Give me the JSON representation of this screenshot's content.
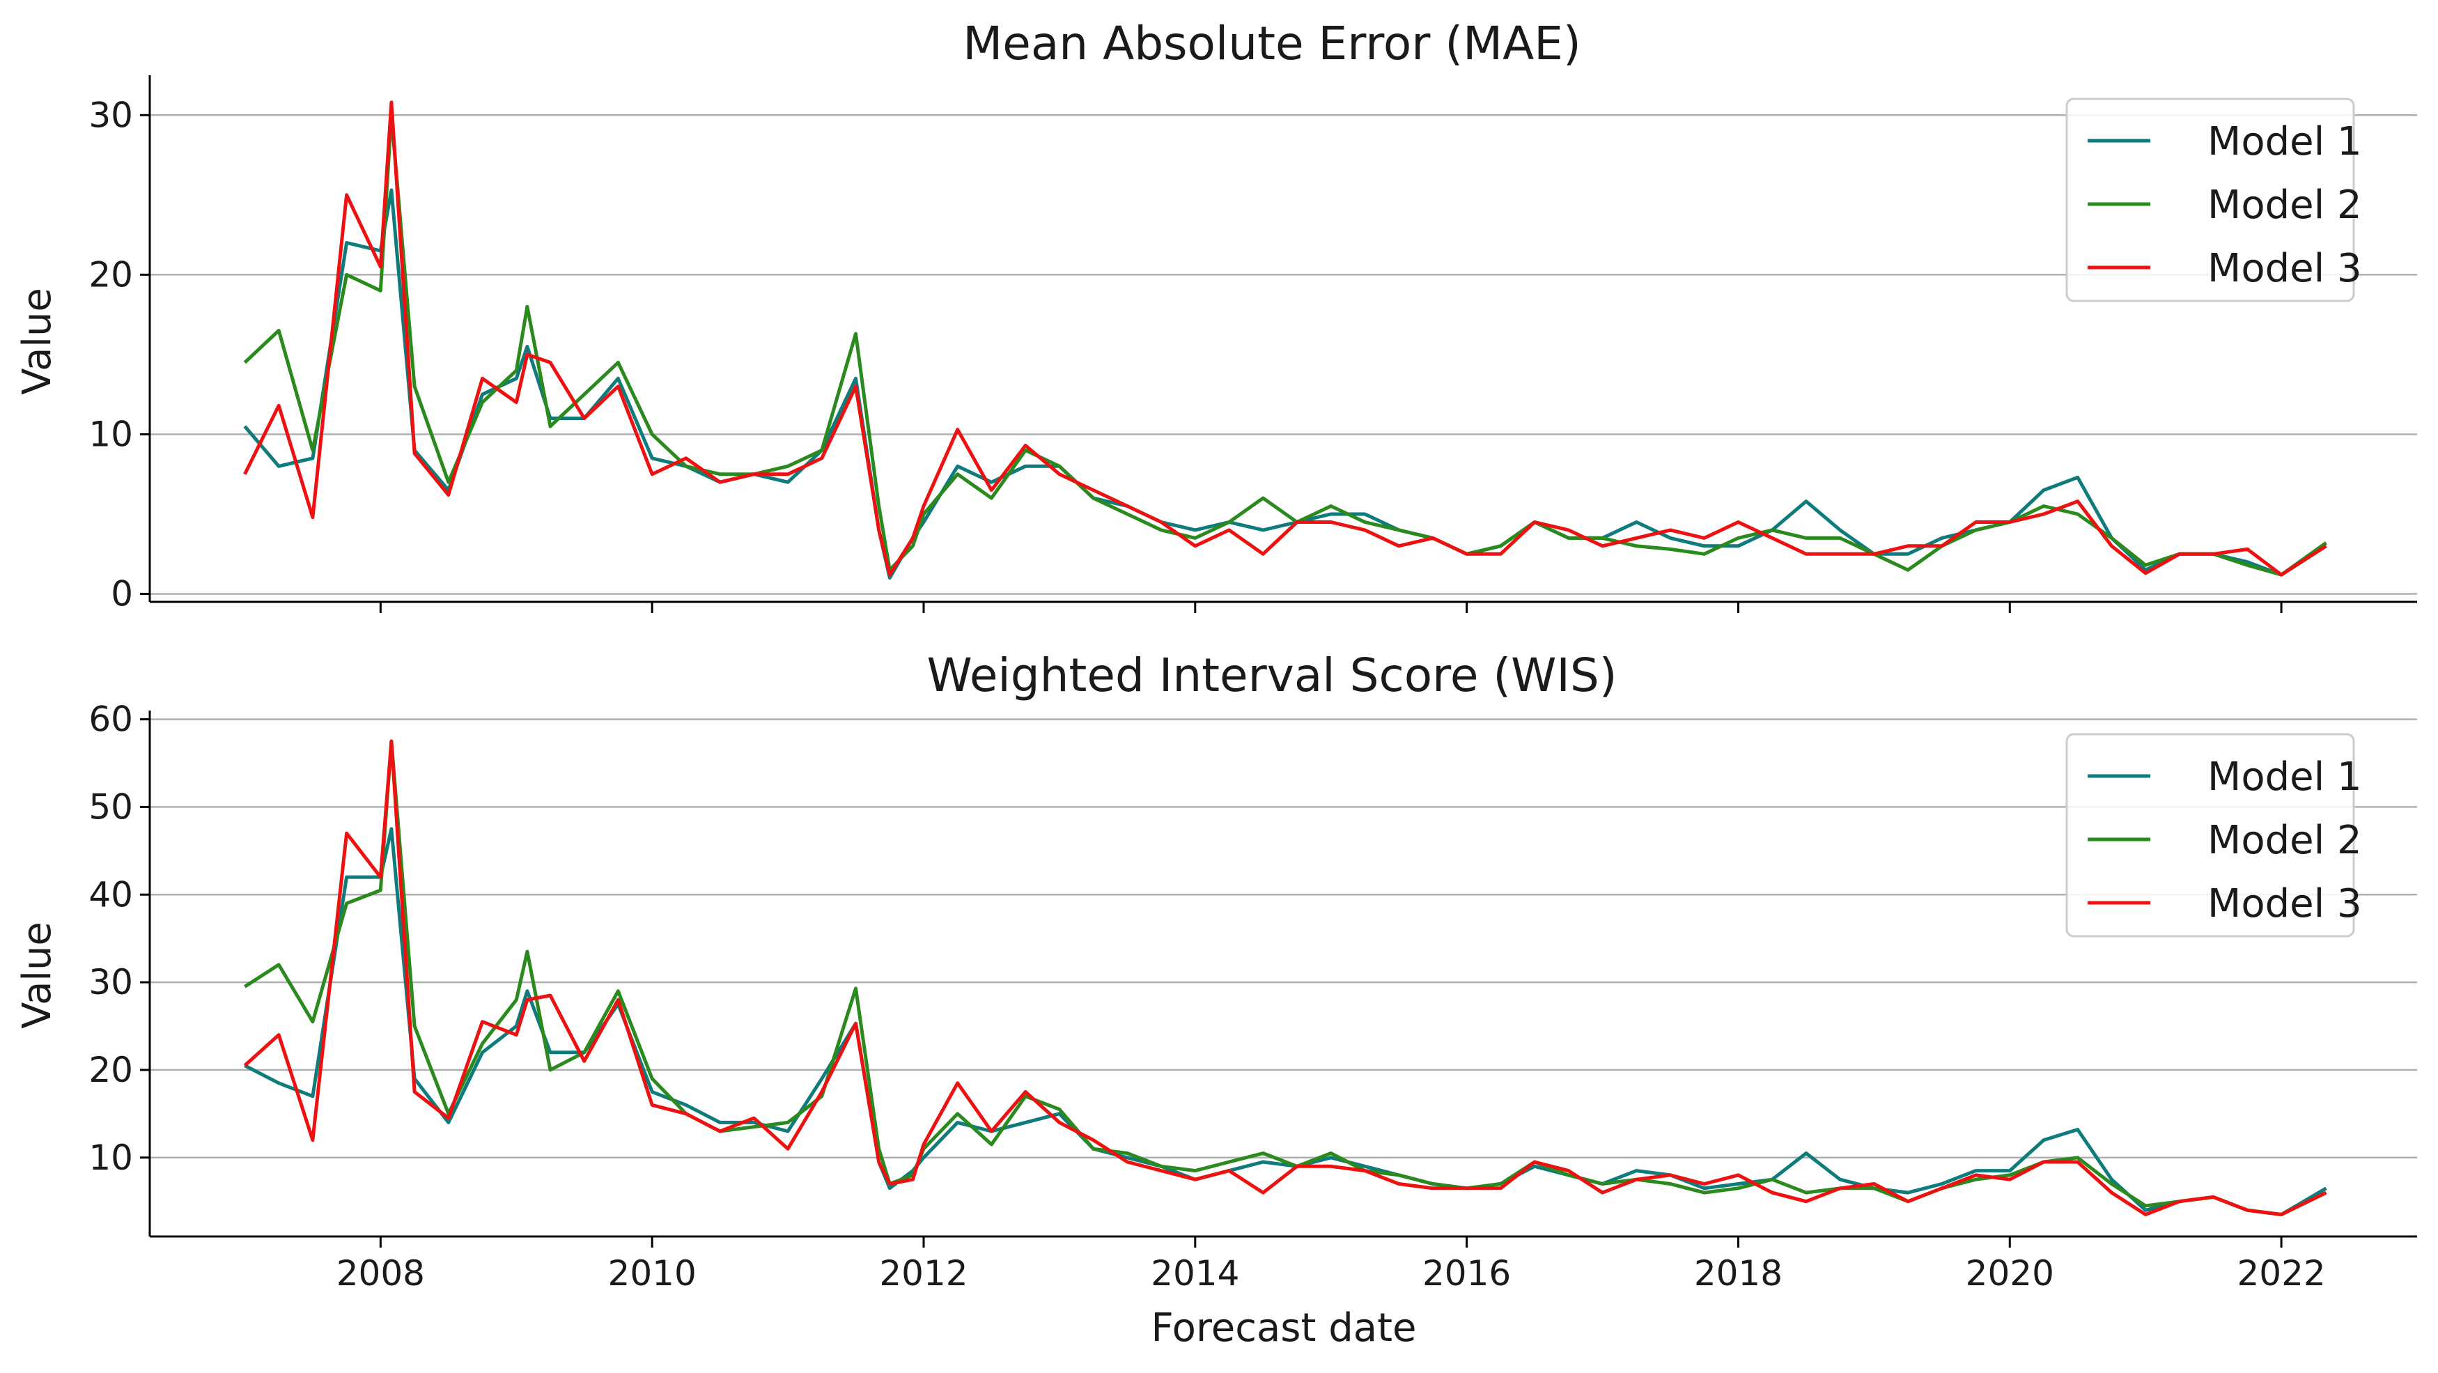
{
  "xlabel": "Forecast date",
  "x_ticks": [
    "2008",
    "2010",
    "2012",
    "2014",
    "2016",
    "2018",
    "2020",
    "2022"
  ],
  "colors": {
    "Model 1": "#0f7b7b",
    "Model 2": "#2a8a1e",
    "Model 3": "#ee1111"
  },
  "chart_data": [
    {
      "type": "line",
      "title": "Mean Absolute Error (MAE)",
      "xlabel": "",
      "ylabel": "Value",
      "xlim": [
        2006.3,
        2023.0
      ],
      "ylim": [
        -0.5,
        32.5
      ],
      "yticks": [
        0,
        10,
        20,
        30
      ],
      "grid": "horizontal",
      "legend": "top-right",
      "x": [
        2007.0,
        2007.25,
        2007.5,
        2007.75,
        2008.0,
        2008.08,
        2008.25,
        2008.5,
        2008.75,
        2009.0,
        2009.08,
        2009.25,
        2009.5,
        2009.75,
        2010.0,
        2010.25,
        2010.5,
        2010.75,
        2011.0,
        2011.25,
        2011.5,
        2011.67,
        2011.75,
        2011.92,
        2012.0,
        2012.25,
        2012.5,
        2012.75,
        2013.0,
        2013.25,
        2013.5,
        2013.75,
        2014.0,
        2014.25,
        2014.5,
        2014.75,
        2015.0,
        2015.25,
        2015.5,
        2015.75,
        2016.0,
        2016.25,
        2016.5,
        2016.75,
        2017.0,
        2017.25,
        2017.5,
        2017.75,
        2018.0,
        2018.25,
        2018.5,
        2018.75,
        2019.0,
        2019.25,
        2019.5,
        2019.75,
        2020.0,
        2020.25,
        2020.5,
        2020.75,
        2021.0,
        2021.25,
        2021.5,
        2021.75,
        2022.0,
        2022.33
      ],
      "series": [
        {
          "name": "Model 1",
          "values": [
            10.5,
            8.0,
            8.5,
            22.0,
            21.5,
            25.3,
            9.0,
            6.5,
            12.5,
            13.5,
            15.5,
            11.0,
            11.0,
            13.5,
            8.5,
            8.0,
            7.0,
            7.5,
            7.0,
            9.0,
            13.5,
            4.0,
            1.0,
            3.5,
            4.5,
            8.0,
            7.0,
            8.0,
            8.0,
            6.0,
            5.5,
            4.5,
            4.0,
            4.5,
            4.0,
            4.5,
            5.0,
            5.0,
            4.0,
            3.5,
            2.5,
            3.0,
            4.5,
            3.5,
            3.5,
            4.5,
            3.5,
            3.0,
            3.0,
            4.0,
            5.8,
            4.0,
            2.5,
            2.5,
            3.5,
            4.0,
            4.5,
            6.5,
            7.3,
            3.5,
            1.5,
            2.5,
            2.5,
            2.0,
            1.2,
            3.0
          ]
        },
        {
          "name": "Model 2",
          "values": [
            14.5,
            16.5,
            9.0,
            20.0,
            19.0,
            30.0,
            13.0,
            7.0,
            12.0,
            14.0,
            18.0,
            10.5,
            12.5,
            14.5,
            10.0,
            8.0,
            7.5,
            7.5,
            8.0,
            9.0,
            16.3,
            5.5,
            1.5,
            3.0,
            5.0,
            7.5,
            6.0,
            9.0,
            8.0,
            6.0,
            5.0,
            4.0,
            3.5,
            4.5,
            6.0,
            4.5,
            5.5,
            4.5,
            4.0,
            3.5,
            2.5,
            3.0,
            4.5,
            3.5,
            3.5,
            3.0,
            2.8,
            2.5,
            3.5,
            4.0,
            3.5,
            3.5,
            2.5,
            1.5,
            3.0,
            4.0,
            4.5,
            5.5,
            5.0,
            3.5,
            1.8,
            2.5,
            2.5,
            1.8,
            1.2,
            3.2
          ]
        },
        {
          "name": "Model 3",
          "values": [
            7.5,
            11.8,
            4.8,
            25.0,
            20.5,
            30.8,
            8.8,
            6.2,
            13.5,
            12.0,
            15.0,
            14.5,
            11.0,
            13.0,
            7.5,
            8.5,
            7.0,
            7.5,
            7.5,
            8.5,
            13.0,
            4.0,
            1.2,
            3.5,
            5.5,
            10.3,
            6.5,
            9.3,
            7.5,
            6.5,
            5.5,
            4.5,
            3.0,
            4.0,
            2.5,
            4.5,
            4.5,
            4.0,
            3.0,
            3.5,
            2.5,
            2.5,
            4.5,
            4.0,
            3.0,
            3.5,
            4.0,
            3.5,
            4.5,
            3.5,
            2.5,
            2.5,
            2.5,
            3.0,
            3.0,
            4.5,
            4.5,
            5.0,
            5.8,
            3.0,
            1.3,
            2.5,
            2.5,
            2.8,
            1.2,
            3.0
          ]
        }
      ]
    },
    {
      "type": "line",
      "title": "Weighted Interval Score (WIS)",
      "xlabel": "Forecast date",
      "ylabel": "Value",
      "xlim": [
        2006.3,
        2023.0
      ],
      "ylim": [
        1.0,
        61.0
      ],
      "yticks": [
        10,
        20,
        30,
        40,
        50,
        60
      ],
      "grid": "horizontal",
      "legend": "top-right",
      "x": [
        2007.0,
        2007.25,
        2007.5,
        2007.75,
        2008.0,
        2008.08,
        2008.25,
        2008.5,
        2008.75,
        2009.0,
        2009.08,
        2009.25,
        2009.5,
        2009.75,
        2010.0,
        2010.25,
        2010.5,
        2010.75,
        2011.0,
        2011.25,
        2011.5,
        2011.67,
        2011.75,
        2011.92,
        2012.0,
        2012.25,
        2012.5,
        2012.75,
        2013.0,
        2013.25,
        2013.5,
        2013.75,
        2014.0,
        2014.25,
        2014.5,
        2014.75,
        2015.0,
        2015.25,
        2015.5,
        2015.75,
        2016.0,
        2016.25,
        2016.5,
        2016.75,
        2017.0,
        2017.25,
        2017.5,
        2017.75,
        2018.0,
        2018.25,
        2018.5,
        2018.75,
        2019.0,
        2019.25,
        2019.5,
        2019.75,
        2020.0,
        2020.25,
        2020.5,
        2020.75,
        2021.0,
        2021.25,
        2021.5,
        2021.75,
        2022.0,
        2022.33
      ],
      "series": [
        {
          "name": "Model 1",
          "values": [
            20.5,
            18.5,
            17.0,
            42.0,
            42.0,
            47.5,
            19.0,
            14.0,
            22.0,
            25.0,
            29.0,
            22.0,
            22.0,
            27.5,
            17.5,
            16.0,
            14.0,
            14.0,
            13.0,
            19.0,
            25.3,
            9.5,
            6.5,
            8.5,
            10.0,
            14.0,
            13.0,
            14.0,
            15.0,
            11.0,
            10.0,
            9.0,
            7.5,
            8.5,
            9.5,
            9.0,
            10.0,
            9.0,
            8.0,
            7.0,
            6.5,
            7.0,
            9.0,
            8.0,
            7.0,
            8.5,
            8.0,
            6.5,
            7.0,
            7.5,
            10.5,
            7.5,
            6.5,
            6.0,
            7.0,
            8.5,
            8.5,
            12.0,
            13.2,
            7.5,
            4.0,
            5.0,
            5.5,
            4.0,
            3.5,
            6.5
          ]
        },
        {
          "name": "Model 2",
          "values": [
            29.5,
            32.0,
            25.5,
            39.0,
            40.5,
            57.5,
            25.0,
            15.0,
            23.0,
            28.0,
            33.5,
            20.0,
            22.0,
            29.0,
            19.0,
            15.0,
            13.0,
            13.5,
            14.0,
            17.0,
            29.3,
            11.0,
            7.0,
            8.0,
            11.0,
            15.0,
            11.5,
            17.0,
            15.5,
            11.0,
            10.5,
            9.0,
            8.5,
            9.5,
            10.5,
            9.0,
            10.5,
            8.5,
            8.0,
            7.0,
            6.5,
            7.0,
            9.5,
            8.0,
            7.0,
            7.5,
            7.0,
            6.0,
            6.5,
            7.5,
            6.0,
            6.5,
            6.5,
            5.0,
            6.5,
            7.5,
            8.0,
            9.5,
            10.0,
            7.0,
            4.5,
            5.0,
            5.5,
            4.0,
            3.5,
            6.0
          ]
        },
        {
          "name": "Model 3",
          "values": [
            20.5,
            24.0,
            12.0,
            47.0,
            42.0,
            57.5,
            17.5,
            14.5,
            25.5,
            24.0,
            28.0,
            28.5,
            21.0,
            28.0,
            16.0,
            15.0,
            13.0,
            14.5,
            11.0,
            17.5,
            25.3,
            9.5,
            7.0,
            7.5,
            11.5,
            18.5,
            13.0,
            17.5,
            14.0,
            12.0,
            9.5,
            8.5,
            7.5,
            8.5,
            6.0,
            9.0,
            9.0,
            8.5,
            7.0,
            6.5,
            6.5,
            6.5,
            9.5,
            8.5,
            6.0,
            7.5,
            8.0,
            7.0,
            8.0,
            6.0,
            5.0,
            6.5,
            7.0,
            5.0,
            6.5,
            8.0,
            7.5,
            9.5,
            9.5,
            6.0,
            3.5,
            5.0,
            5.5,
            4.0,
            3.5,
            6.0
          ]
        }
      ]
    }
  ]
}
